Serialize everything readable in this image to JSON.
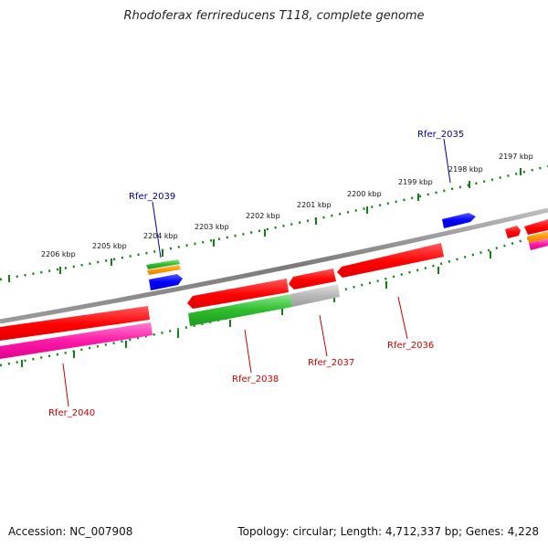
{
  "title": "Rhodoferax ferrireducens T118, complete genome",
  "footer": {
    "accession": "Accession: NC_007908",
    "summary": "Topology: circular; Length: 4,712,337 bp; Genes: 4,228"
  },
  "ruler_labels": [
    "2206 kbp",
    "2205 kbp",
    "2204 kbp",
    "2203 kbp",
    "2202 kbp",
    "2201 kbp",
    "2200 kbp",
    "2199 kbp",
    "2198 kbp",
    "2197 kbp"
  ],
  "gene_labels": {
    "top": [
      "Rfer_2039",
      "Rfer_2035"
    ],
    "bottom": [
      "Rfer_2040",
      "Rfer_2038",
      "Rfer_2037",
      "Rfer_2036"
    ]
  },
  "colors": {
    "gene_red": "#ff0000",
    "rna_blue": "#0000ff",
    "cds_green": "#2ebd2e",
    "orange": "#ff9900",
    "pink": "#ff1aa8",
    "gray": "#b8b8b8",
    "backbone": "#888888",
    "tick_green": "#138013",
    "label_blue": "#000099",
    "label_red": "#cc0000"
  }
}
